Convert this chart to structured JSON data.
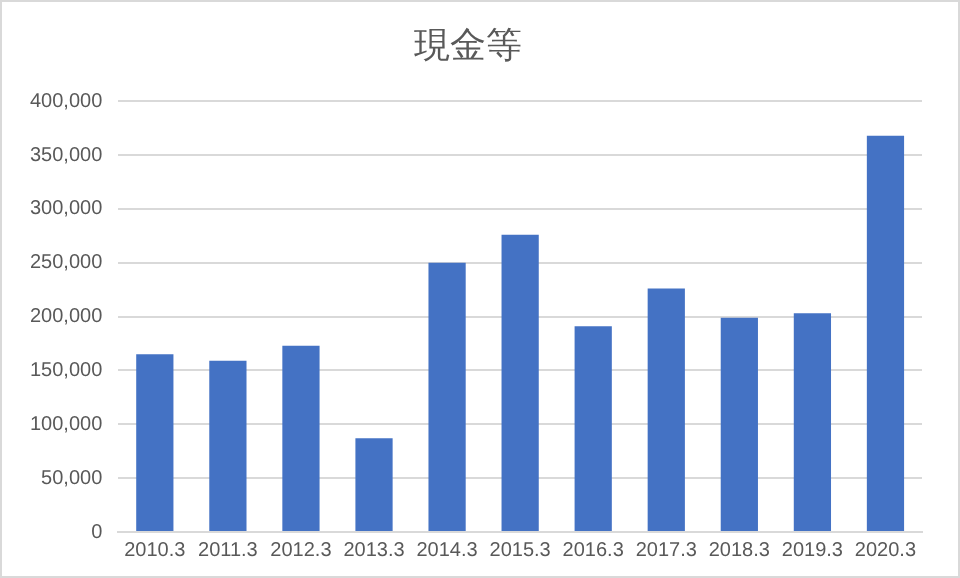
{
  "chart_data": {
    "type": "bar",
    "title": "現金等",
    "categories": [
      "2010.3",
      "2011.3",
      "2012.3",
      "2013.3",
      "2014.3",
      "2015.3",
      "2016.3",
      "2017.3",
      "2018.3",
      "2019.3",
      "2020.3"
    ],
    "values": [
      165000,
      159000,
      173000,
      87000,
      250000,
      276000,
      191000,
      226000,
      199000,
      203000,
      368000
    ],
    "color": "#4472c4",
    "ylim": [
      0,
      400000
    ],
    "yticks": [
      0,
      {
        "value": 50000,
        "label": "50,000"
      },
      {
        "value": 100000,
        "label": "100,000"
      },
      {
        "value": 150000,
        "label": "150,000"
      },
      {
        "value": 200000,
        "label": "200,000"
      },
      {
        "value": 250000,
        "label": "250,000"
      },
      {
        "value": 300000,
        "label": "300,000"
      },
      {
        "value": 350000,
        "label": "350,000"
      },
      {
        "value": 400000,
        "label": "400,000"
      }
    ],
    "grid": "y",
    "legend": false
  }
}
